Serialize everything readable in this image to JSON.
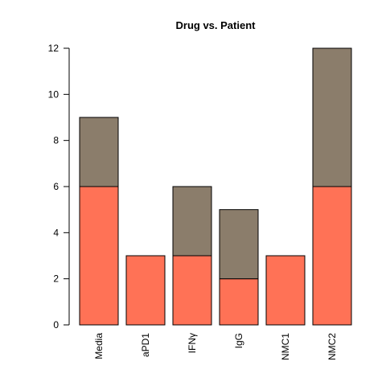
{
  "chart_data": {
    "type": "bar",
    "stacked": true,
    "title": "Drug vs. Patient",
    "xlabel": "",
    "ylabel": "",
    "categories": [
      "Media",
      "aPD1",
      "IFNγ",
      "IgG",
      "NMC1",
      "NMC2"
    ],
    "series": [
      {
        "values": [
          6,
          3,
          3,
          2,
          3,
          6
        ],
        "color": "#FF7256"
      },
      {
        "values": [
          3,
          0,
          3,
          3,
          0,
          6
        ],
        "color": "#8B7D6B"
      }
    ],
    "ylim": [
      0,
      12
    ],
    "yticks": [
      0,
      2,
      4,
      6,
      8,
      10,
      12
    ],
    "grid": false,
    "legend": "none"
  }
}
